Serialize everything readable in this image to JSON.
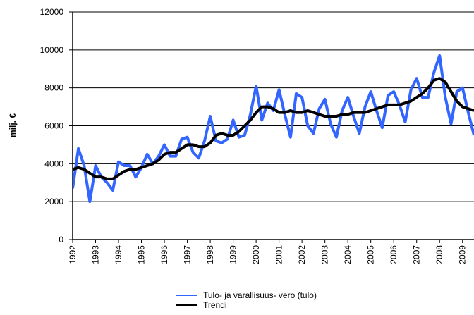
{
  "chart_data": {
    "type": "line",
    "y_label": "milj. €",
    "x": [
      1992,
      1992.25,
      1992.5,
      1992.75,
      1993,
      1993.25,
      1993.5,
      1993.75,
      1994,
      1994.25,
      1994.5,
      1994.75,
      1995,
      1995.25,
      1995.5,
      1995.75,
      1996,
      1996.25,
      1996.5,
      1996.75,
      1997,
      1997.25,
      1997.5,
      1997.75,
      1998,
      1998.25,
      1998.5,
      1998.75,
      1999,
      1999.25,
      1999.5,
      1999.75,
      2000,
      2000.25,
      2000.5,
      2000.75,
      2001,
      2001.25,
      2001.5,
      2001.75,
      2002,
      2002.25,
      2002.5,
      2002.75,
      2003,
      2003.25,
      2003.5,
      2003.75,
      2004,
      2004.25,
      2004.5,
      2004.75,
      2005,
      2005.25,
      2005.5,
      2005.75,
      2006,
      2006.25,
      2006.5,
      2006.75,
      2007,
      2007.25,
      2007.5,
      2007.75,
      2008,
      2008.25,
      2008.5,
      2008.75,
      2009,
      2009.25,
      2009.5
    ],
    "series": [
      {
        "name": "Tulo- ja varallisuus- vero (tulo)",
        "color": "#3366ff",
        "width": 4,
        "values": [
          2700,
          4800,
          3900,
          2000,
          3900,
          3300,
          3000,
          2600,
          4100,
          3900,
          3900,
          3300,
          3800,
          4500,
          4000,
          4400,
          5000,
          4400,
          4400,
          5300,
          5400,
          4600,
          4300,
          5200,
          6500,
          5200,
          5100,
          5300,
          6300,
          5400,
          5500,
          6600,
          8100,
          6300,
          7200,
          6800,
          7900,
          6600,
          5400,
          7700,
          7500,
          6000,
          5600,
          6900,
          7400,
          6100,
          5400,
          6800,
          7500,
          6500,
          5600,
          7000,
          7800,
          6800,
          5900,
          7600,
          7800,
          7100,
          6200,
          7900,
          8500,
          7500,
          7500,
          8800,
          9700,
          7500,
          6100,
          7800,
          8000,
          6700,
          5500
        ]
      },
      {
        "name": "Trendi",
        "color": "#000000",
        "width": 4,
        "values": [
          3700,
          3800,
          3700,
          3500,
          3300,
          3300,
          3200,
          3200,
          3400,
          3600,
          3700,
          3700,
          3800,
          3900,
          4000,
          4200,
          4500,
          4600,
          4600,
          4800,
          5000,
          5000,
          4900,
          4900,
          5100,
          5500,
          5600,
          5500,
          5500,
          5700,
          6000,
          6300,
          6700,
          7000,
          7000,
          6900,
          6700,
          6700,
          6800,
          6700,
          6700,
          6800,
          6700,
          6600,
          6500,
          6500,
          6500,
          6600,
          6600,
          6700,
          6700,
          6700,
          6800,
          6900,
          7000,
          7100,
          7100,
          7100,
          7200,
          7300,
          7500,
          7700,
          8000,
          8400,
          8500,
          8300,
          7800,
          7300,
          7000,
          6900,
          6800
        ]
      }
    ],
    "xlim": [
      1992,
      2009.5
    ],
    "xticks": [
      1992,
      1993,
      1994,
      1995,
      1996,
      1997,
      1998,
      1999,
      2000,
      2001,
      2002,
      2003,
      2004,
      2005,
      2006,
      2007,
      2008,
      2009
    ],
    "ylim": [
      0,
      12000
    ],
    "yticks": [
      0,
      2000,
      4000,
      6000,
      8000,
      10000,
      12000
    ],
    "grid": true
  }
}
